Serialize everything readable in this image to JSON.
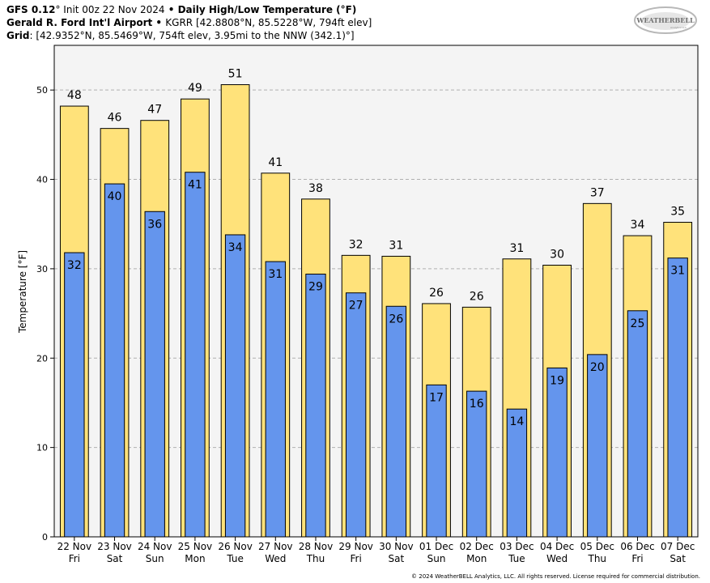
{
  "header": {
    "line1_model": "GFS 0.12",
    "line1_deg": "°",
    "line1_init": " Init 00z 22 Nov 2024",
    "line1_sep": " • ",
    "line1_title": "Daily High/Low Temperature (°F)",
    "line2_station": "Gerald R. Ford Int'l Airport",
    "line2_sep": " • ",
    "line2_details": "KGRR [42.8808°N, 85.5228°W, 794ft elev]",
    "line3_label": "Grid",
    "line3_details": ": [42.9352°N, 85.5469°W, 754ft elev, 3.95mi to the NNW (342.1)°]"
  },
  "logo": {
    "text": "WEATHERBELL",
    "subtext": "Analytics LLC"
  },
  "copyright": "© 2024 WeatherBELL Analytics, LLC. All rights reserved. License required for commercial distribution.",
  "colors": {
    "high": "#ffe27a",
    "low": "#6495ed",
    "plot_bg": "#f4f4f4",
    "grid": "#b0b0b0"
  },
  "chart_data": {
    "type": "bar",
    "ylabel": "Temperature [°F]",
    "ylim": [
      0,
      55
    ],
    "yticks": [
      0,
      10,
      20,
      30,
      40,
      50
    ],
    "grid": true,
    "categories": [
      [
        "22 Nov",
        "Fri"
      ],
      [
        "23 Nov",
        "Sat"
      ],
      [
        "24 Nov",
        "Sun"
      ],
      [
        "25 Nov",
        "Mon"
      ],
      [
        "26 Nov",
        "Tue"
      ],
      [
        "27 Nov",
        "Wed"
      ],
      [
        "28 Nov",
        "Thu"
      ],
      [
        "29 Nov",
        "Fri"
      ],
      [
        "30 Nov",
        "Sat"
      ],
      [
        "01 Dec",
        "Sun"
      ],
      [
        "02 Dec",
        "Mon"
      ],
      [
        "03 Dec",
        "Tue"
      ],
      [
        "04 Dec",
        "Wed"
      ],
      [
        "05 Dec",
        "Thu"
      ],
      [
        "06 Dec",
        "Fri"
      ],
      [
        "07 Dec",
        "Sat"
      ]
    ],
    "series": [
      {
        "key": "high",
        "values": [
          48.2,
          45.7,
          46.6,
          49.0,
          50.6,
          40.7,
          37.8,
          31.5,
          31.4,
          26.1,
          25.7,
          31.1,
          30.4,
          37.3,
          33.7,
          35.2
        ],
        "labels": [
          "48",
          "46",
          "47",
          "49",
          "51",
          "41",
          "38",
          "32",
          "31",
          "26",
          "26",
          "31",
          "30",
          "37",
          "34",
          "35"
        ]
      },
      {
        "key": "low",
        "values": [
          31.8,
          39.5,
          36.4,
          40.8,
          33.8,
          30.8,
          29.4,
          27.3,
          25.8,
          17.0,
          16.3,
          14.3,
          18.9,
          20.4,
          25.3,
          31.2
        ],
        "labels": [
          "32",
          "40",
          "36",
          "41",
          "34",
          "31",
          "29",
          "27",
          "26",
          "17",
          "16",
          "14",
          "19",
          "20",
          "25",
          "31"
        ]
      }
    ]
  }
}
